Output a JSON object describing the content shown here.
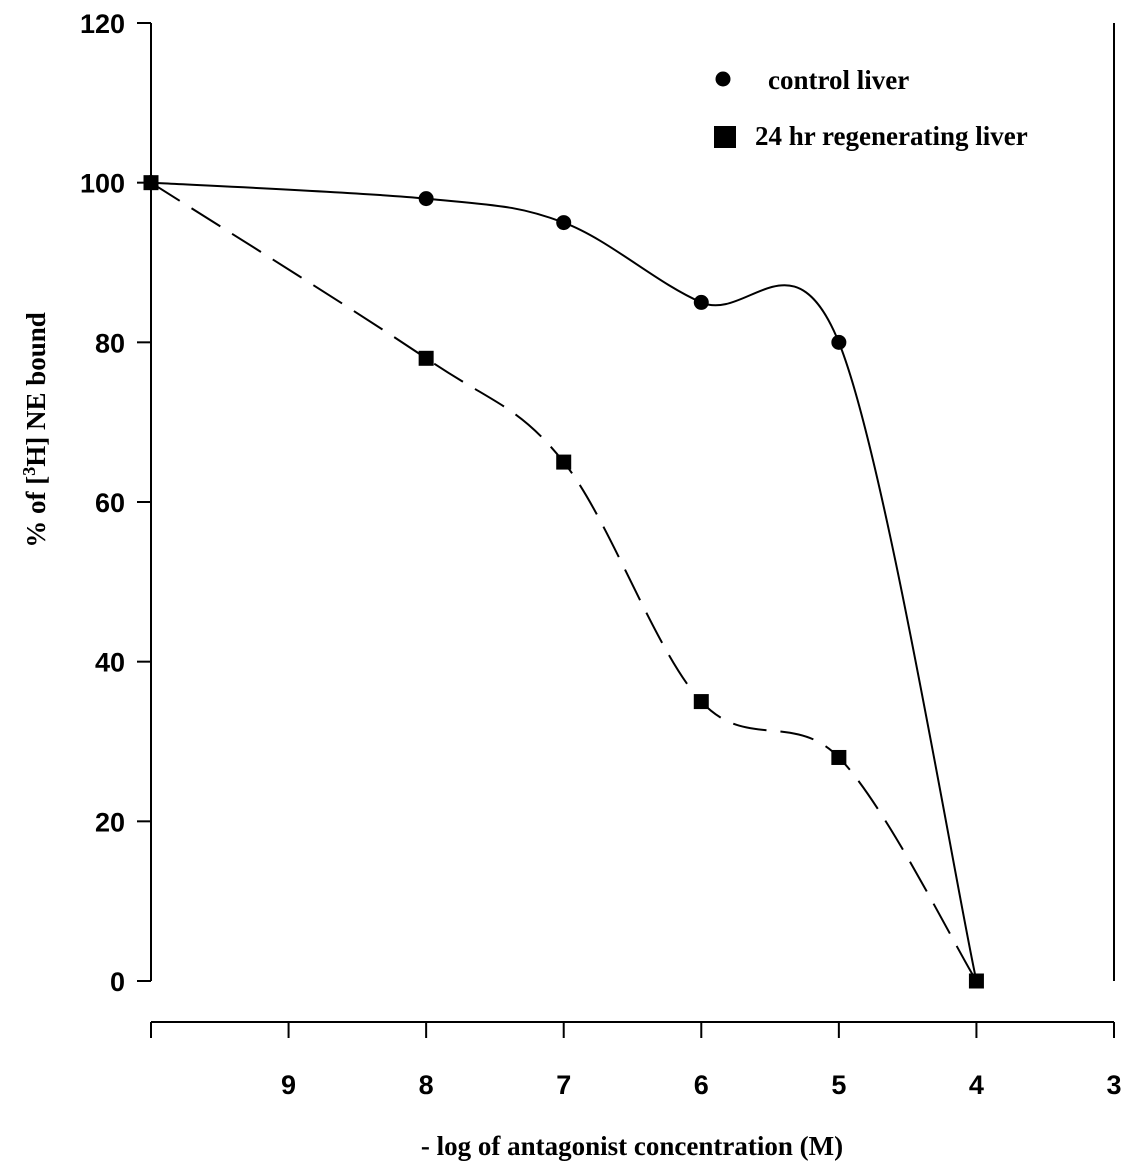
{
  "chart_data": {
    "type": "line",
    "xlabel": "- log of antagonist concentration (M)",
    "ylabel_prefix": "% of [",
    "ylabel_sup": "3",
    "ylabel_suffix": "H] NE bound",
    "x_reversed": true,
    "xlim": [
      10,
      3
    ],
    "ylim": [
      0,
      120
    ],
    "x_ticks": [
      10,
      9,
      8,
      7,
      6,
      5,
      4,
      3
    ],
    "x_tick_labels": [
      "",
      "9",
      "8",
      "7",
      "6",
      "5",
      "4",
      "3"
    ],
    "y_ticks": [
      0,
      20,
      40,
      60,
      80,
      100,
      120
    ],
    "y_tick_labels": [
      "0",
      "20",
      "40",
      "60",
      "80",
      "100",
      "120"
    ],
    "legend_position": "top-right",
    "series": [
      {
        "name": "control liver",
        "marker": "circle",
        "line_style": "solid",
        "x": [
          10,
          8,
          7,
          6,
          5
        ],
        "y": [
          100,
          98,
          95,
          85,
          80
        ],
        "curve_to": {
          "x": 4,
          "y": 0
        }
      },
      {
        "name": "24 hr regenerating liver",
        "marker": "square",
        "line_style": "dashed",
        "x": [
          10,
          8,
          7,
          6,
          5,
          4
        ],
        "y": [
          100,
          78,
          65,
          35,
          28,
          0
        ]
      }
    ]
  }
}
